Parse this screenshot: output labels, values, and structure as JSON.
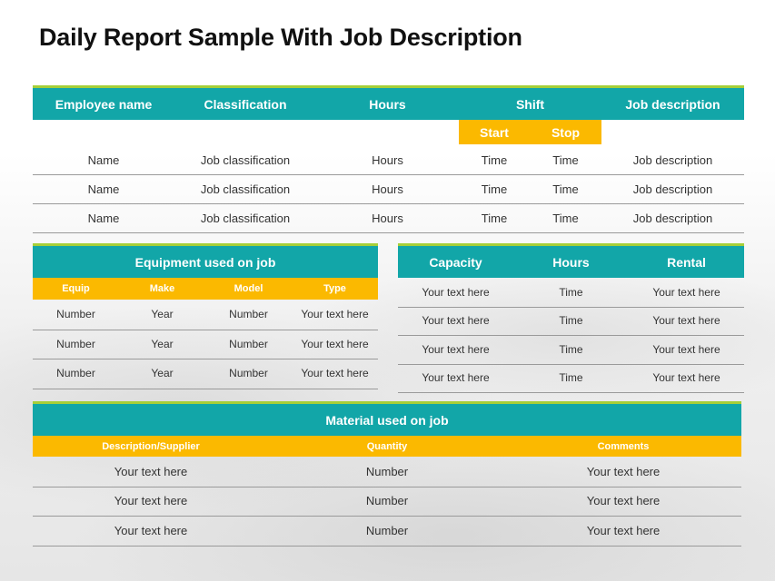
{
  "title": "Daily Report Sample With Job Description",
  "job_table": {
    "headers": [
      "Employee name",
      "Classification",
      "Hours",
      "Shift",
      "Job description"
    ],
    "shift_sub": [
      "Start",
      "Stop"
    ],
    "rows": [
      [
        "Name",
        "Job classification",
        "Hours",
        "Time",
        "Time",
        "Job description"
      ],
      [
        "Name",
        "Job classification",
        "Hours",
        "Time",
        "Time",
        "Job description"
      ],
      [
        "Name",
        "Job classification",
        "Hours",
        "Time",
        "Time",
        "Job description"
      ]
    ]
  },
  "equipment_table": {
    "title": "Equipment used on job",
    "headers": [
      "Equip",
      "Make",
      "Model",
      "Type"
    ],
    "rows": [
      [
        "Number",
        "Year",
        "Number",
        "Your text here"
      ],
      [
        "Number",
        "Year",
        "Number",
        "Your text here"
      ],
      [
        "Number",
        "Year",
        "Number",
        "Your text here"
      ]
    ]
  },
  "capacity_table": {
    "headers": [
      "Capacity",
      "Hours",
      "Rental"
    ],
    "rows": [
      [
        "Your text here",
        "Time",
        "Your text here"
      ],
      [
        "Your text here",
        "Time",
        "Your text here"
      ],
      [
        "Your text here",
        "Time",
        "Your text here"
      ],
      [
        "Your text here",
        "Time",
        "Your text here"
      ]
    ]
  },
  "material_table": {
    "title": "Material used on job",
    "headers": [
      "Description/Supplier",
      "Quantity",
      "Comments"
    ],
    "rows": [
      [
        "Your text here",
        "Number",
        "Your text here"
      ],
      [
        "Your text here",
        "Number",
        "Your text here"
      ],
      [
        "Your text here",
        "Number",
        "Your text here"
      ]
    ]
  },
  "colors": {
    "teal": "#12a6a8",
    "yellow": "#fbb900",
    "green": "#a6cf38"
  }
}
